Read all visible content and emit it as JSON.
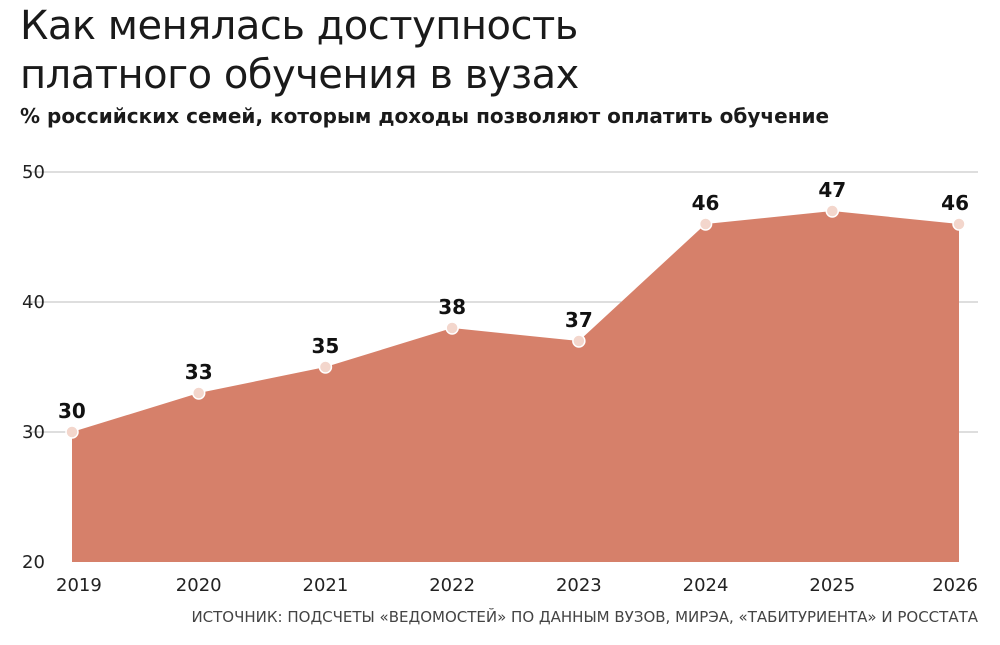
{
  "chart_data": {
    "type": "area",
    "title": "Как менялась доступность платного обучения в вузах",
    "subtitle": "% российских семей, которым доходы позволяют оплатить обучение",
    "x": [
      "2019",
      "2020",
      "2021",
      "2022",
      "2023",
      "2024",
      "2025",
      "2026"
    ],
    "values": [
      30,
      33,
      35,
      38,
      37,
      46,
      47,
      46
    ],
    "data_labels": [
      "30",
      "33",
      "35",
      "38",
      "37",
      "46",
      "47",
      "46"
    ],
    "yticks": [
      "20",
      "30",
      "40",
      "50"
    ],
    "ylim": [
      20,
      50
    ],
    "grid": true,
    "source": "ИСТОЧНИК: ПОДСЧЕТЫ «ВЕДОМОСТЕЙ» ПО ДАННЫМ ВУЗОВ, МИРЭА, «ТАБИТУРИЕНТА» И РОССТАТА"
  },
  "colors": {
    "area": "#d6806a",
    "marker_fill": "#f3d6cc",
    "marker_stroke": "#ffffff",
    "grid": "#bdbdbd",
    "text": "#1a1a1a"
  }
}
